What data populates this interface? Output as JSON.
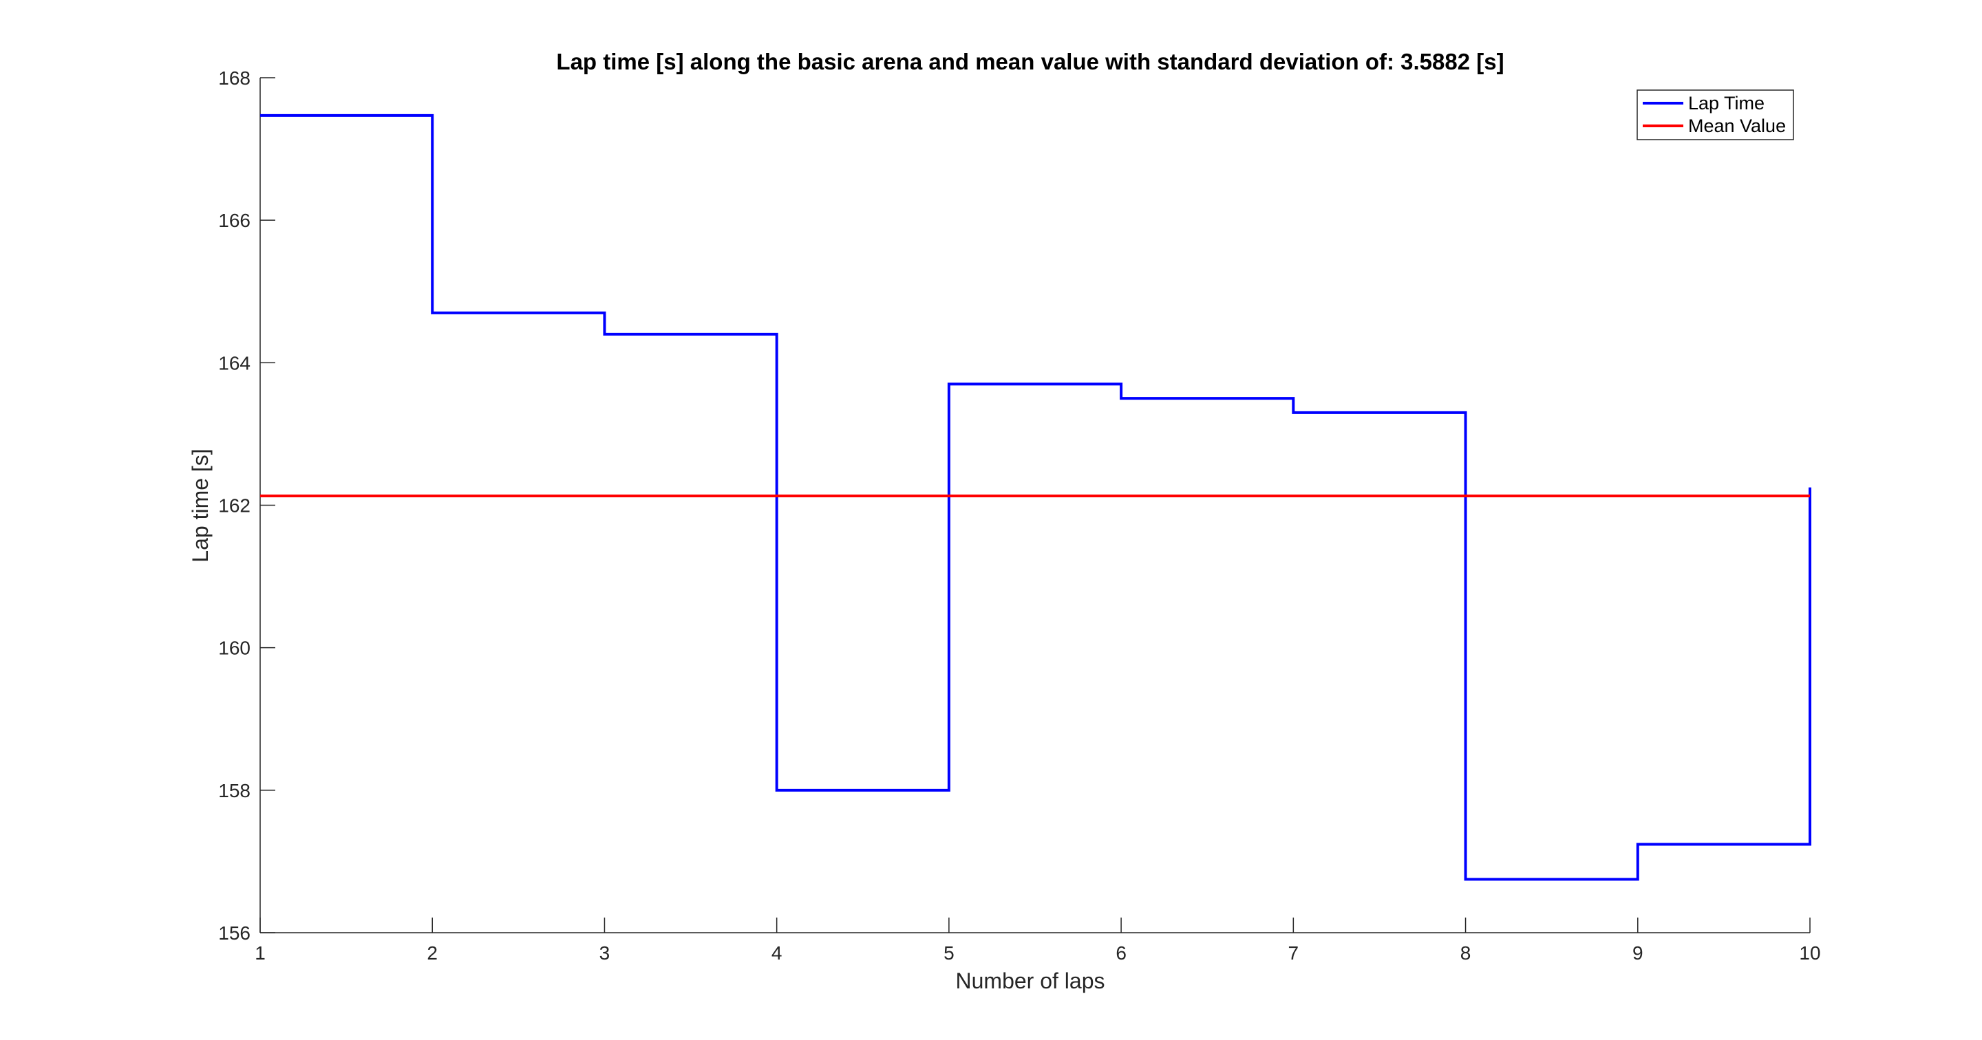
{
  "chart_data": {
    "type": "line",
    "step": true,
    "title": "Lap time [s] along the basic arena and mean value with standard deviation of: 3.5882 [s]",
    "xlabel": "Number of laps",
    "ylabel": "Lap time [s]",
    "xlim": [
      1,
      10
    ],
    "ylim": [
      156,
      168
    ],
    "xticks": [
      "1",
      "2",
      "3",
      "4",
      "5",
      "6",
      "7",
      "8",
      "9",
      "10"
    ],
    "yticks": [
      "156",
      "158",
      "160",
      "162",
      "164",
      "166",
      "168"
    ],
    "grid": false,
    "legend_position": "top-right",
    "series": [
      {
        "name": "Lap Time",
        "color": "#0000ff",
        "x": [
          1,
          2,
          3,
          4,
          5,
          6,
          7,
          8,
          9,
          10
        ],
        "y": [
          167.47,
          164.7,
          164.4,
          158.0,
          163.7,
          163.5,
          163.3,
          156.75,
          157.24,
          162.25
        ],
        "drawstyle": "steps-post"
      },
      {
        "name": "Mean Value",
        "color": "#ff0000",
        "x": [
          1,
          10
        ],
        "y": [
          162.13,
          162.13
        ]
      }
    ]
  }
}
